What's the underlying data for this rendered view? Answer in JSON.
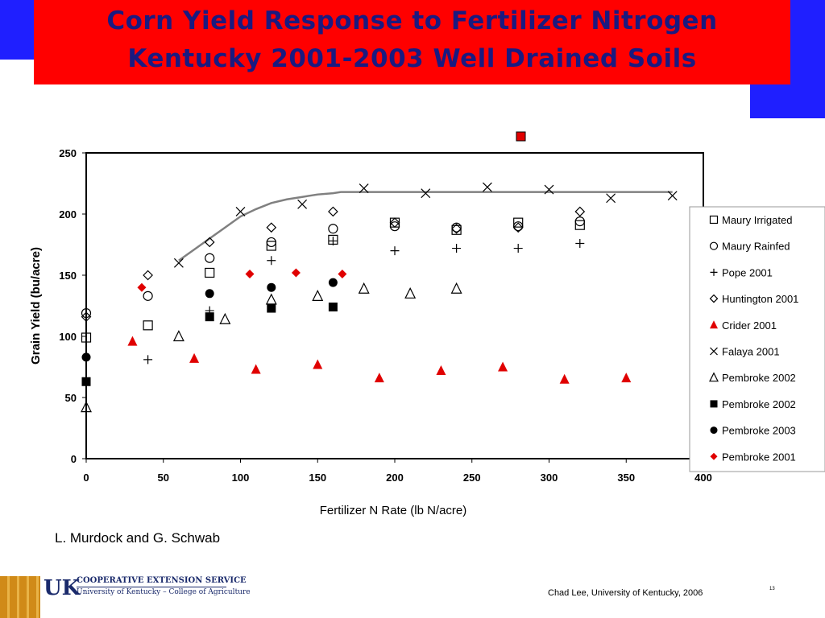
{
  "slide": {
    "title_line1": "Corn Yield Response to Fertilizer Nitrogen",
    "title_line2": "Kentucky 2001-2003 Well Drained Soils",
    "credit": "L. Murdock and G. Schwab",
    "footer_credit": "Chad Lee, University of Kentucky, 2006",
    "page_number": "13",
    "logo_line1": "COOPERATIVE EXTENSION SERVICE",
    "logo_line2": "University of Kentucky – College of Agriculture",
    "logo_mark": "UK"
  },
  "colors": {
    "title_bg": "#ff0000",
    "title_text": "#1a1a80",
    "accent_blue": "#1f1fff",
    "red_marker": "#e00000",
    "curve": "#808080"
  },
  "chart_data": {
    "type": "scatter",
    "title": "",
    "xlabel": "Fertilizer N Rate (lb N/acre)",
    "ylabel": "Grain Yield (bu/acre)",
    "xlim": [
      0,
      400
    ],
    "ylim": [
      0,
      250
    ],
    "xticks": [
      0,
      50,
      100,
      150,
      200,
      250,
      300,
      350,
      400
    ],
    "yticks": [
      0,
      50,
      100,
      150,
      200,
      250
    ],
    "grid": false,
    "legend_position": "right",
    "series": [
      {
        "name": "Maury Irrigated",
        "marker": "square-open",
        "color": "#000000",
        "points": [
          [
            0,
            99
          ],
          [
            40,
            109
          ],
          [
            80,
            152
          ],
          [
            120,
            174
          ],
          [
            160,
            179
          ],
          [
            200,
            193
          ],
          [
            240,
            187
          ],
          [
            280,
            193
          ],
          [
            320,
            191
          ]
        ]
      },
      {
        "name": "Maury Rainfed",
        "marker": "circle-open",
        "color": "#000000",
        "points": [
          [
            0,
            119
          ],
          [
            40,
            133
          ],
          [
            80,
            164
          ],
          [
            120,
            177
          ],
          [
            160,
            188
          ],
          [
            200,
            190
          ],
          [
            240,
            189
          ],
          [
            280,
            190
          ],
          [
            320,
            194
          ]
        ]
      },
      {
        "name": "Pope 2001",
        "marker": "plus",
        "color": "#000000",
        "points": [
          [
            40,
            81
          ],
          [
            80,
            121
          ],
          [
            120,
            162
          ],
          [
            160,
            178
          ],
          [
            200,
            170
          ],
          [
            240,
            172
          ],
          [
            280,
            172
          ],
          [
            320,
            176
          ]
        ]
      },
      {
        "name": "Huntington 2001",
        "marker": "diamond-open",
        "color": "#000000",
        "points": [
          [
            0,
            116
          ],
          [
            40,
            150
          ],
          [
            80,
            177
          ],
          [
            120,
            189
          ],
          [
            160,
            202
          ],
          [
            200,
            193
          ],
          [
            240,
            188
          ],
          [
            280,
            189
          ],
          [
            320,
            202
          ]
        ]
      },
      {
        "name": "Crider 2001",
        "marker": "triangle-filled",
        "color": "#e00000",
        "points": [
          [
            30,
            96
          ],
          [
            70,
            82
          ],
          [
            110,
            73
          ],
          [
            150,
            77
          ],
          [
            190,
            66
          ],
          [
            230,
            72
          ],
          [
            270,
            75
          ],
          [
            310,
            65
          ],
          [
            350,
            66
          ]
        ]
      },
      {
        "name": "Falaya 2001",
        "marker": "x",
        "color": "#000000",
        "points": [
          [
            60,
            160
          ],
          [
            100,
            202
          ],
          [
            140,
            208
          ],
          [
            180,
            221
          ],
          [
            220,
            217
          ],
          [
            260,
            222
          ],
          [
            300,
            220
          ],
          [
            340,
            213
          ],
          [
            380,
            215
          ]
        ]
      },
      {
        "name": "Pembroke 2002",
        "marker": "triangle-open",
        "color": "#000000",
        "points": [
          [
            0,
            42
          ],
          [
            60,
            100
          ],
          [
            90,
            114
          ],
          [
            120,
            130
          ],
          [
            150,
            133
          ],
          [
            180,
            139
          ],
          [
            210,
            135
          ],
          [
            240,
            139
          ]
        ]
      },
      {
        "name": "Pembroke 2002",
        "marker": "square-filled",
        "color": "#000000",
        "points": [
          [
            0,
            63
          ],
          [
            80,
            116
          ],
          [
            120,
            123
          ],
          [
            160,
            124
          ]
        ]
      },
      {
        "name": "Pembroke 2003",
        "marker": "circle-filled",
        "color": "#000000",
        "points": [
          [
            0,
            83
          ],
          [
            80,
            135
          ],
          [
            120,
            140
          ],
          [
            160,
            144
          ]
        ]
      },
      {
        "name": "Pembroke 2001",
        "marker": "diamond-filled",
        "color": "#e00000",
        "points": [
          [
            36,
            140
          ],
          [
            106,
            151
          ],
          [
            136,
            152
          ],
          [
            166,
            151
          ]
        ]
      }
    ],
    "curve": {
      "color": "#808080",
      "points": [
        [
          60,
          162
        ],
        [
          70,
          171
        ],
        [
          80,
          180
        ],
        [
          90,
          189
        ],
        [
          100,
          198
        ],
        [
          110,
          204
        ],
        [
          120,
          209
        ],
        [
          130,
          212
        ],
        [
          140,
          214
        ],
        [
          150,
          216
        ],
        [
          160,
          217
        ],
        [
          165,
          218
        ],
        [
          380,
          218
        ]
      ]
    }
  }
}
